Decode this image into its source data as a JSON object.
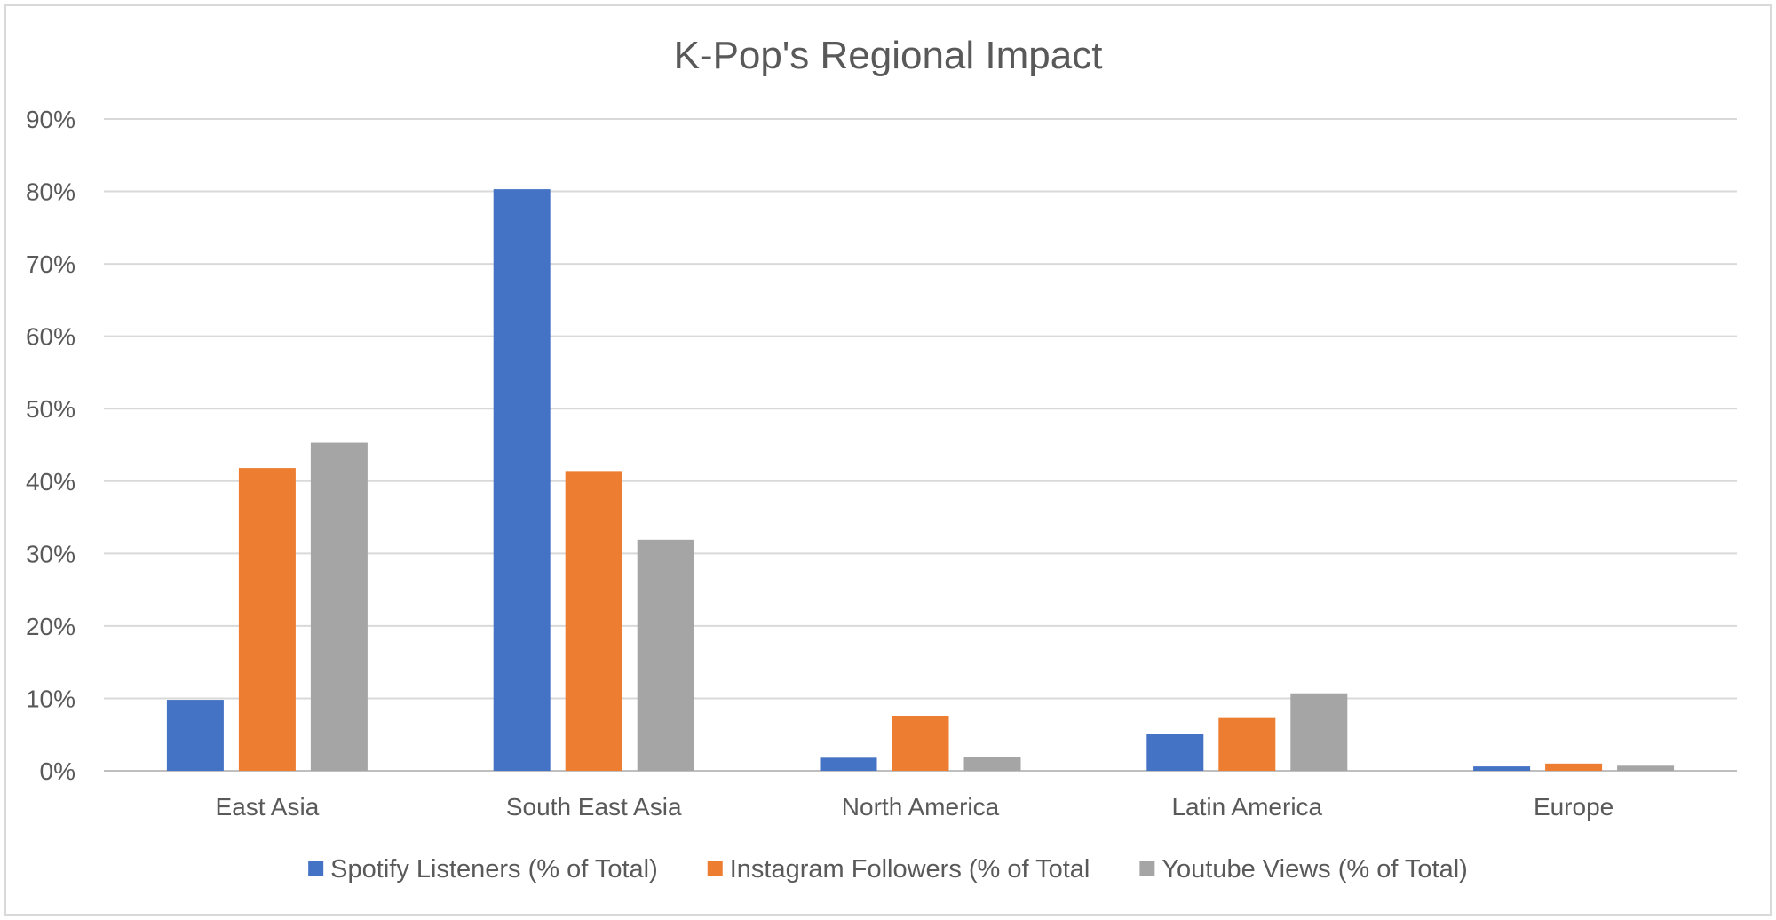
{
  "chart_data": {
    "type": "bar",
    "title": "K-Pop's Regional Impact",
    "xlabel": "",
    "ylabel": "",
    "categories": [
      "East Asia",
      "South East Asia",
      "North America",
      "Latin America",
      "Europe"
    ],
    "series": [
      {
        "name": "Spotify Listeners (% of Total)",
        "color": "#4472C4",
        "values": [
          9.8,
          80.3,
          1.8,
          5.1,
          0.6
        ]
      },
      {
        "name": "Instagram Followers (% of Total",
        "color": "#ED7D31",
        "values": [
          41.8,
          41.4,
          7.6,
          7.4,
          1.0
        ]
      },
      {
        "name": "Youtube Views (% of Total)",
        "color": "#A5A5A5",
        "values": [
          45.3,
          31.9,
          1.9,
          10.7,
          0.7
        ]
      }
    ],
    "ylim": [
      0,
      90
    ],
    "yticks": [
      "0%",
      "10%",
      "20%",
      "30%",
      "40%",
      "50%",
      "60%",
      "70%",
      "80%",
      "90%"
    ],
    "grid": true,
    "legend_position": "bottom"
  }
}
